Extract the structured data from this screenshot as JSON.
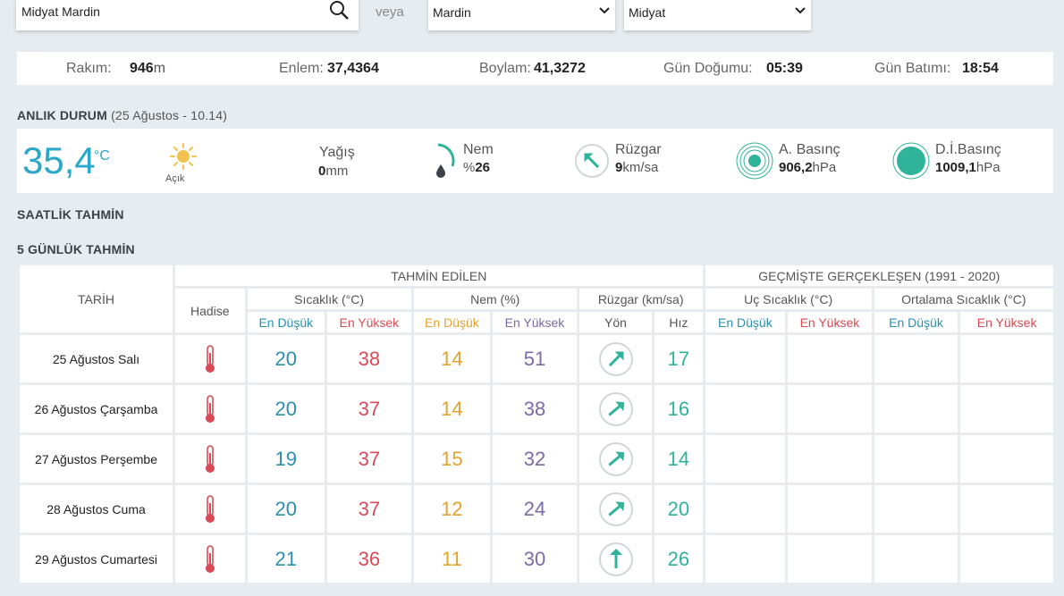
{
  "search": {
    "value": "Midyat Mardin",
    "or_label": "veya"
  },
  "selects": {
    "province": "Mardin",
    "district": "Midyat"
  },
  "info": {
    "altitude_label": "Rakım:",
    "altitude_value": "946",
    "altitude_unit": "m",
    "lat_label": "Enlem:",
    "lat_value": "37,4364",
    "lon_label": "Boylam:",
    "lon_value": "41,3272",
    "sunrise_label": "Gün Doğumu:",
    "sunrise_value": "05:39",
    "sunset_label": "Gün Batımı:",
    "sunset_value": "18:54"
  },
  "current": {
    "title": "ANLIK DURUM",
    "time": "(25 Ağustos - 10.14)",
    "temperature": "35,4",
    "temp_unit": "°C",
    "condition": "Açık",
    "condition_icon": "sun-icon",
    "rain_label": "Yağış",
    "rain_value": "0",
    "rain_unit": "mm",
    "humidity_label": "Nem",
    "humidity_prefix": "%",
    "humidity_value": "26",
    "wind_label": "Rüzgar",
    "wind_value": "9",
    "wind_unit": "km/sa",
    "pressure_label": "A. Basınç",
    "pressure_value": "906,2",
    "pressure_unit": "hPa",
    "sea_pressure_label": "D.İ.Basınç",
    "sea_pressure_value": "1009,1",
    "sea_pressure_unit": "hPa",
    "accent": "#2aa7c9",
    "wind_color": "#2fb39a"
  },
  "hourly": {
    "title": "SAATLİK TAHMİN"
  },
  "forecast": {
    "title": "5 GÜNLÜK TAHMİN",
    "group_forecast": "TAHMİN EDİLEN",
    "group_history": "GEÇMİŞTE GERÇEKLEŞEN (1991 - 2020)",
    "col_date": "TARİH",
    "col_event": "Hadise",
    "col_temp": "Sıcaklık (°C)",
    "col_humidity": "Nem (%)",
    "col_wind": "Rüzgar (km/sa)",
    "col_extreme": "Uç Sıcaklık (°C)",
    "col_avg": "Ortalama Sıcaklık (°C)",
    "low": "En Düşük",
    "high": "En Yüksek",
    "dir": "Yön",
    "speed": "Hız",
    "rows": [
      {
        "date": "25 Ağustos Salı",
        "tmin": "20",
        "tmax": "38",
        "hmin": "14",
        "hmax": "51",
        "wdir": 45,
        "wspd": "17"
      },
      {
        "date": "26 Ağustos Çarşamba",
        "tmin": "20",
        "tmax": "37",
        "hmin": "14",
        "hmax": "38",
        "wdir": 50,
        "wspd": "16"
      },
      {
        "date": "27 Ağustos Perşembe",
        "tmin": "19",
        "tmax": "37",
        "hmin": "15",
        "hmax": "32",
        "wdir": 50,
        "wspd": "14"
      },
      {
        "date": "28 Ağustos Cuma",
        "tmin": "20",
        "tmax": "37",
        "hmin": "12",
        "hmax": "24",
        "wdir": 50,
        "wspd": "20"
      },
      {
        "date": "29 Ağustos Cumartesi",
        "tmin": "21",
        "tmax": "36",
        "hmin": "11",
        "hmax": "30",
        "wdir": 0,
        "wspd": "26"
      }
    ]
  }
}
